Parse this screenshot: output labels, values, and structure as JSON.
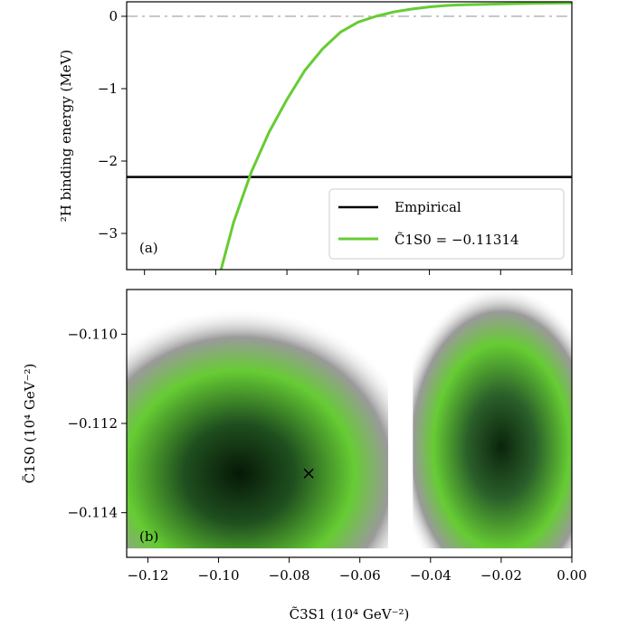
{
  "chart_data": [
    {
      "type": "line",
      "panel_label": "(a)",
      "ylabel": "²H binding energy (MeV)",
      "xlim": [
        -0.125,
        0.0
      ],
      "ylim": [
        -3.5,
        0.2
      ],
      "yticks": [
        0,
        -1,
        -2,
        -3
      ],
      "ytick_labels": [
        "0",
        "−1",
        "−2",
        "−3"
      ],
      "reference_line": {
        "y": 0,
        "style": "dash-dot",
        "color": "#c8c8c8"
      },
      "legend_position": "lower-right",
      "series": [
        {
          "name": "Empirical",
          "color": "#000000",
          "x": [
            -0.125,
            0.0
          ],
          "y": [
            -2.22,
            -2.22
          ]
        },
        {
          "name": "C̃1S0 = −0.11314",
          "color": "#66cc33",
          "x": [
            -0.0985,
            -0.095,
            -0.09,
            -0.085,
            -0.08,
            -0.075,
            -0.07,
            -0.065,
            -0.06,
            -0.055,
            -0.05,
            -0.045,
            -0.04,
            -0.035,
            -0.03,
            -0.02,
            -0.01,
            0.0
          ],
          "y": [
            -3.5,
            -2.85,
            -2.15,
            -1.6,
            -1.15,
            -0.75,
            -0.45,
            -0.22,
            -0.08,
            0.0,
            0.06,
            0.1,
            0.13,
            0.15,
            0.16,
            0.17,
            0.18,
            0.185
          ]
        }
      ]
    },
    {
      "type": "heatmap",
      "panel_label": "(b)",
      "xlabel": "C̃3S1 (10⁴ GeV⁻²)",
      "ylabel": "C̃1S0 (10⁴ GeV⁻²)",
      "xlim": [
        -0.126,
        0.0
      ],
      "ylim": [
        -0.115,
        -0.109
      ],
      "xticks": [
        -0.12,
        -0.1,
        -0.08,
        -0.06,
        -0.04,
        -0.02,
        0.0
      ],
      "xtick_labels": [
        "−0.12",
        "−0.10",
        "−0.08",
        "−0.06",
        "−0.04",
        "−0.02",
        "0.00"
      ],
      "yticks": [
        -0.11,
        -0.112,
        -0.114
      ],
      "ytick_labels": [
        "−0.110",
        "−0.112",
        "−0.114"
      ],
      "colors": {
        "dark": "#0a2a0a",
        "mid": "#66cc33",
        "edge": "#8a8a8a"
      },
      "regions": [
        {
          "name": "left-valley",
          "x_range": [
            -0.126,
            -0.052
          ]
        },
        {
          "name": "right-valley",
          "x_range": [
            -0.045,
            -0.01
          ]
        }
      ],
      "marker": {
        "symbol": "×",
        "x": -0.0745,
        "y": -0.1131
      }
    }
  ]
}
